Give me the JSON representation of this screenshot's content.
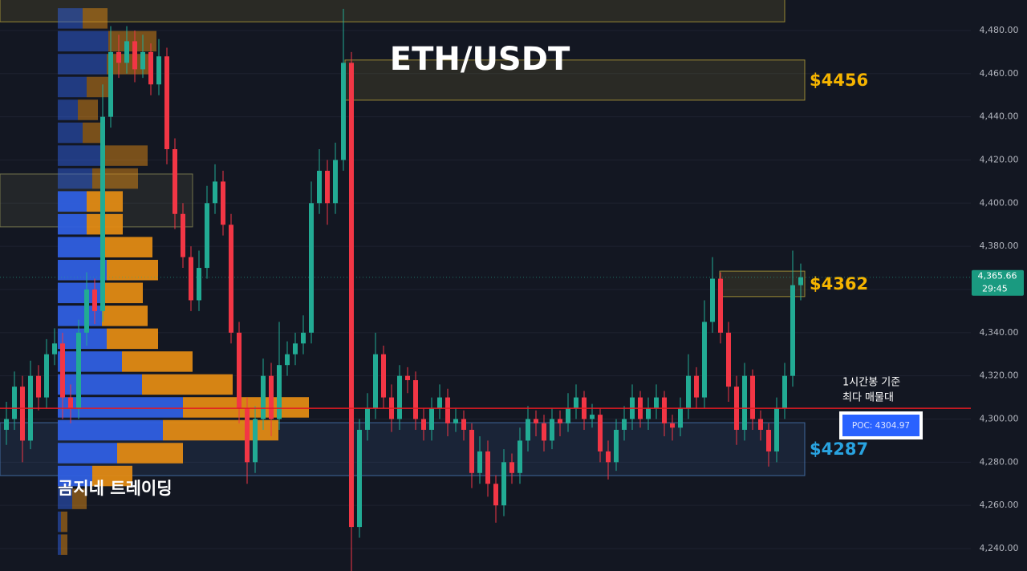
{
  "chart_data": {
    "type": "candlestick",
    "title": "ETH/USDT",
    "watermark": "곰지네 트레이딩",
    "ylim": [
      4229.6,
      4494.1
    ],
    "yticks": [
      {
        "value": 4240,
        "label": "4,240.00"
      },
      {
        "value": 4260,
        "label": "4,260.00"
      },
      {
        "value": 4280,
        "label": "4,280.00"
      },
      {
        "value": 4300,
        "label": "4,300.00"
      },
      {
        "value": 4320,
        "label": "4,320.00"
      },
      {
        "value": 4340,
        "label": "4,340.00"
      },
      {
        "value": 4360,
        "label": "4,360.00"
      },
      {
        "value": 4380,
        "label": "4,380.00"
      },
      {
        "value": 4400,
        "label": "4,400.00"
      },
      {
        "value": 4420,
        "label": "4,420.00"
      },
      {
        "value": 4440,
        "label": "4,440.00"
      },
      {
        "value": 4460,
        "label": "4,460.00"
      },
      {
        "value": 4480,
        "label": "4,480.00"
      }
    ],
    "grid": true,
    "up_color": "#22ab94",
    "down_color": "#f23645",
    "candles": {
      "open": [
        4295,
        4300,
        4315,
        4290,
        4320,
        4310,
        4330,
        4335,
        4310,
        4305,
        4340,
        4360,
        4350,
        4440,
        4470,
        4465,
        4475,
        4462,
        4470,
        4455,
        4468,
        4425,
        4395,
        4375,
        4355,
        4370,
        4400,
        4410,
        4390,
        4340,
        4305,
        4280,
        4300,
        4320,
        4300,
        4325,
        4330,
        4335,
        4340,
        4400,
        4415,
        4400,
        4420,
        4465,
        4250,
        4295,
        4305,
        4330,
        4310,
        4300,
        4320,
        4318,
        4300,
        4295,
        4305,
        4310,
        4298,
        4300,
        4295,
        4275,
        4285,
        4270,
        4260,
        4280,
        4275,
        4290,
        4300,
        4298,
        4290,
        4300,
        4298,
        4305,
        4310,
        4300,
        4302,
        4285,
        4280,
        4295,
        4300,
        4310,
        4300,
        4305,
        4310,
        4298,
        4296,
        4305,
        4320,
        4310,
        4345,
        4365,
        4340,
        4315,
        4295,
        4320,
        4300,
        4295,
        4285,
        4305,
        4320,
        4362
      ],
      "high": [
        4308,
        4322,
        4320,
        4327,
        4325,
        4337,
        4342,
        4340,
        4316,
        4346,
        4368,
        4365,
        4455,
        4482,
        4478,
        4482,
        4480,
        4478,
        4474,
        4476,
        4472,
        4430,
        4400,
        4380,
        4378,
        4408,
        4418,
        4415,
        4395,
        4345,
        4310,
        4306,
        4328,
        4326,
        4345,
        4336,
        4340,
        4348,
        4410,
        4425,
        4420,
        4428,
        4490,
        4470,
        4300,
        4312,
        4340,
        4334,
        4316,
        4325,
        4324,
        4322,
        4305,
        4310,
        4316,
        4314,
        4305,
        4304,
        4298,
        4292,
        4290,
        4274,
        4286,
        4284,
        4296,
        4306,
        4304,
        4302,
        4305,
        4304,
        4312,
        4316,
        4313,
        4307,
        4305,
        4290,
        4300,
        4306,
        4316,
        4313,
        4310,
        4316,
        4313,
        4302,
        4310,
        4330,
        4324,
        4355,
        4375,
        4368,
        4345,
        4320,
        4326,
        4323,
        4304,
        4298,
        4310,
        4326,
        4378,
        4372
      ],
      "low": [
        4288,
        4295,
        4280,
        4286,
        4304,
        4305,
        4325,
        4300,
        4298,
        4300,
        4334,
        4344,
        4345,
        4435,
        4458,
        4460,
        4456,
        4458,
        4450,
        4450,
        4418,
        4388,
        4370,
        4350,
        4350,
        4365,
        4395,
        4385,
        4335,
        4298,
        4270,
        4275,
        4295,
        4292,
        4295,
        4320,
        4325,
        4330,
        4335,
        4395,
        4390,
        4395,
        4415,
        4225,
        4245,
        4290,
        4300,
        4305,
        4294,
        4295,
        4312,
        4295,
        4290,
        4290,
        4300,
        4292,
        4294,
        4290,
        4268,
        4270,
        4264,
        4252,
        4255,
        4270,
        4270,
        4285,
        4292,
        4285,
        4286,
        4292,
        4294,
        4300,
        4295,
        4296,
        4280,
        4272,
        4276,
        4290,
        4295,
        4296,
        4295,
        4300,
        4292,
        4290,
        4292,
        4300,
        4305,
        4305,
        4340,
        4335,
        4308,
        4288,
        4290,
        4295,
        4290,
        4278,
        4280,
        4300,
        4315,
        4355
      ],
      "close": [
        4300,
        4315,
        4290,
        4320,
        4310,
        4330,
        4335,
        4310,
        4305,
        4340,
        4360,
        4350,
        4440,
        4470,
        4465,
        4475,
        4462,
        4470,
        4455,
        4468,
        4425,
        4395,
        4375,
        4355,
        4370,
        4400,
        4410,
        4390,
        4340,
        4305,
        4280,
        4300,
        4320,
        4300,
        4325,
        4330,
        4335,
        4340,
        4400,
        4415,
        4400,
        4420,
        4465,
        4250,
        4295,
        4305,
        4330,
        4310,
        4300,
        4320,
        4318,
        4300,
        4295,
        4305,
        4310,
        4298,
        4300,
        4295,
        4275,
        4285,
        4270,
        4260,
        4280,
        4275,
        4290,
        4300,
        4298,
        4290,
        4300,
        4298,
        4305,
        4310,
        4300,
        4302,
        4285,
        4280,
        4295,
        4300,
        4310,
        4300,
        4305,
        4310,
        4298,
        4296,
        4305,
        4320,
        4310,
        4345,
        4365,
        4340,
        4315,
        4295,
        4320,
        4300,
        4295,
        4285,
        4305,
        4320,
        4362,
        4365.66
      ]
    },
    "volume_profile": {
      "levels": [
        4485.6,
        4475.0,
        4464.4,
        4453.8,
        4443.2,
        4432.6,
        4422.0,
        4411.4,
        4400.8,
        4390.2,
        4379.6,
        4369.0,
        4358.4,
        4347.8,
        4337.2,
        4326.6,
        4316.0,
        4305.4,
        4294.8,
        4284.2,
        4273.6,
        4263.0,
        4252.4,
        4241.8
      ],
      "buy": [
        31,
        63,
        61,
        36,
        25,
        31,
        55,
        43,
        36,
        36,
        56,
        61,
        56,
        55,
        61,
        80,
        105,
        156,
        131,
        74,
        43,
        18,
        4,
        4
      ],
      "sell": [
        31,
        60,
        52,
        32,
        25,
        27,
        57,
        57,
        45,
        45,
        62,
        64,
        50,
        57,
        64,
        88,
        113,
        157,
        144,
        82,
        50,
        18,
        8,
        8
      ],
      "buy_color": "#2f5fe0",
      "sell_color": "#e08a14",
      "value_area": [
        4273.6,
        4400.8
      ]
    },
    "zones": [
      {
        "range": [
          4484,
          4496
        ],
        "color": "#b8a23a"
      },
      {
        "range": [
          4447.7,
          4466.3
        ],
        "color": "#b8a23a",
        "label": "$4456",
        "label_color": "#f5b400"
      },
      {
        "range": [
          4389,
          4413.5
        ],
        "color": "#8a8a55"
      },
      {
        "range": [
          4356.7,
          4368.5
        ],
        "color": "#b8a23a",
        "label": "$4362",
        "label_color": "#f5b400"
      },
      {
        "range": [
          4273.8,
          4298.3
        ],
        "color": "#4a7ab8",
        "label": "$4287",
        "label_color": "#29a3e0"
      }
    ],
    "poc": {
      "value": 4304.97,
      "label": "POC: 4304.97",
      "note": [
        "1시간봉 기준",
        "최다 매물대"
      ],
      "color": "#e21b23"
    },
    "current_price": {
      "value": 4365.66,
      "label": "4,365.66",
      "countdown": "29:45"
    }
  }
}
